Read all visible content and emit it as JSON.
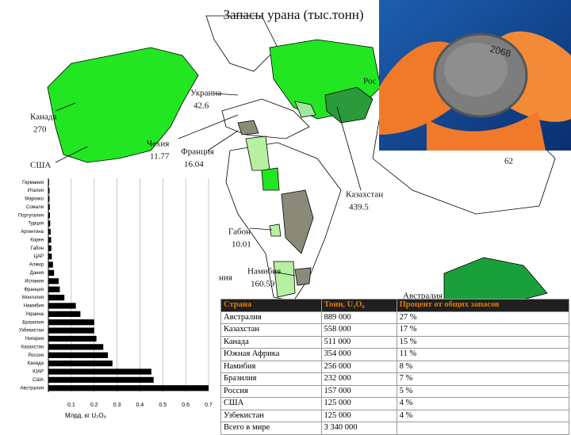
{
  "title": "Запасы урана (тыс.тонн)",
  "photo_label": "2068",
  "map_labels": [
    {
      "text": "Канада",
      "value": 270
    },
    {
      "text": "США"
    },
    {
      "text": "Украина",
      "value": 42.6
    },
    {
      "text": "Чехия",
      "value": 11.77
    },
    {
      "text": "Франция",
      "value": 16.04
    },
    {
      "text": "Рос"
    },
    {
      "text": "62"
    },
    {
      "text": "Казахстан",
      "value": 439.5
    },
    {
      "text": "Габон",
      "value": 10.01
    },
    {
      "text": "Намибия",
      "value": 160.59
    },
    {
      "text": "ния"
    },
    {
      "text": "Австралия"
    }
  ],
  "chart_data": {
    "type": "bar",
    "orientation": "horizontal",
    "categories": [
      "Германия",
      "Италия",
      "Марокко",
      "Сомали",
      "Португалия",
      "Турция",
      "Аргентина",
      "Корея",
      "Габон",
      "ЦАР",
      "Алжир",
      "Дания",
      "Испания",
      "Франция",
      "Монголия",
      "Намибия",
      "Украина",
      "Бразилия",
      "Узбекистан",
      "Нигерия",
      "Казахстан",
      "Россия",
      "Канада",
      "ЮАР",
      "США",
      "Австралия"
    ],
    "values": [
      0.003,
      0.005,
      0.005,
      0.006,
      0.007,
      0.008,
      0.01,
      0.012,
      0.013,
      0.015,
      0.02,
      0.025,
      0.045,
      0.05,
      0.07,
      0.12,
      0.14,
      0.2,
      0.2,
      0.21,
      0.24,
      0.26,
      0.28,
      0.45,
      0.46,
      0.7
    ],
    "color": "#000000",
    "x_label": "Млрд. кг U₃O₈",
    "xlim": [
      0,
      0.7
    ],
    "xticks": [
      0.1,
      0.2,
      0.3,
      0.4,
      0.5,
      0.6,
      0.7
    ],
    "grid": true
  },
  "table": {
    "header": [
      "Страна",
      "Тонн, U₃O₈",
      "Процент от общих запасов"
    ],
    "rows": [
      [
        "Австралия",
        "889 000",
        "27 %"
      ],
      [
        "Казахстан",
        "558 000",
        "17 %"
      ],
      [
        "Канада",
        "511 000",
        "15 %"
      ],
      [
        "Южная Африка",
        "354 000",
        "11 %"
      ],
      [
        "Намибия",
        "256 000",
        "8 %"
      ],
      [
        "Бразилия",
        "232 000",
        "7 %"
      ],
      [
        "Россия",
        "157 000",
        "5 %"
      ],
      [
        "США",
        "125 000",
        "4 %"
      ],
      [
        "Узбекистан",
        "125 000",
        "4 %"
      ],
      [
        "Всего в мире",
        "3 340 000",
        ""
      ]
    ]
  }
}
